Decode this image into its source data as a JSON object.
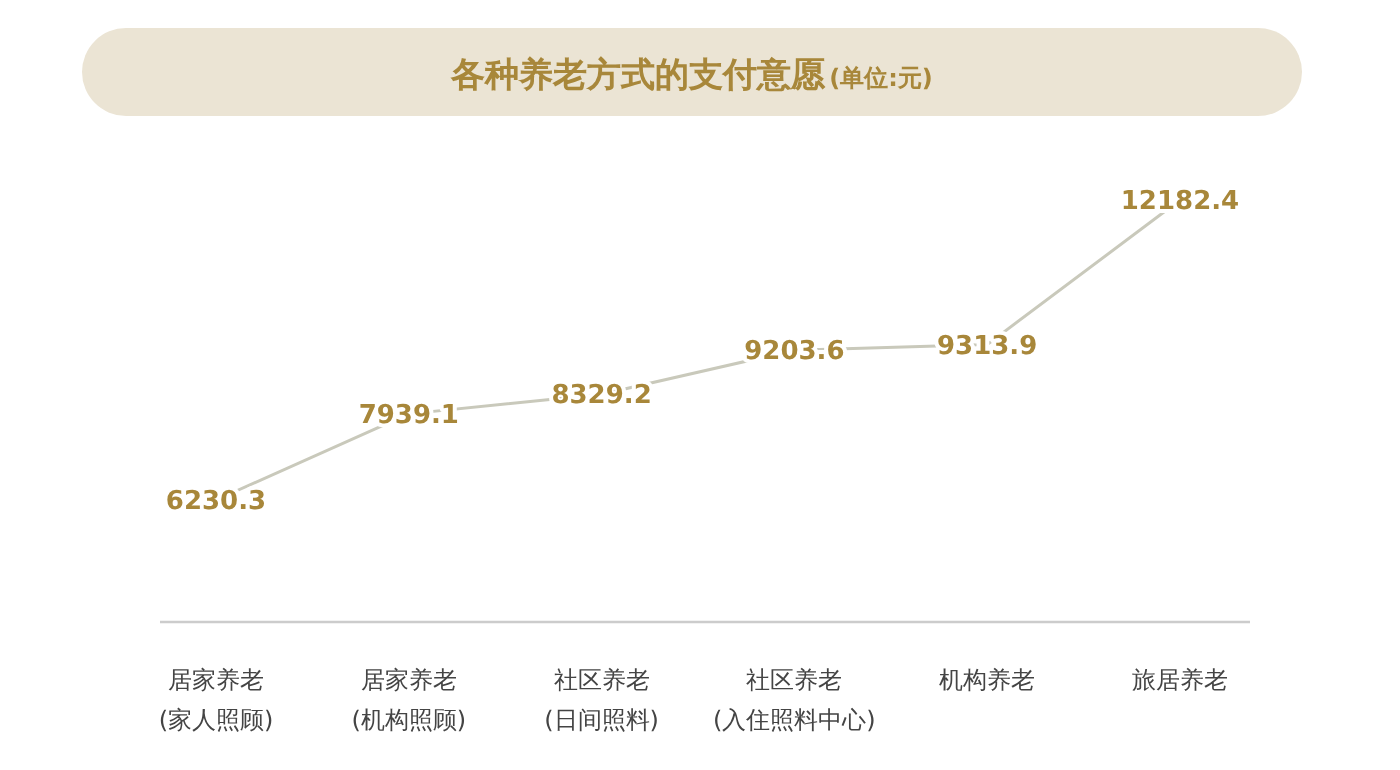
{
  "chart_data": {
    "type": "line",
    "title": "各种养老方式的支付意愿",
    "subtitle": "(单位:元)",
    "categories": [
      "居家养老\n(家人照顾)",
      "居家养老\n(机构照顾)",
      "社区养老\n(日间照料)",
      "社区养老\n(入住照料中心)",
      "机构养老",
      "旅居养老"
    ],
    "series": [
      {
        "color": "#c9c9bb",
        "values": [
          6230.3,
          7939.1,
          8329.2,
          9203.6,
          9313.9,
          12182.4
        ]
      }
    ],
    "data_labels": true,
    "marker": "none"
  }
}
